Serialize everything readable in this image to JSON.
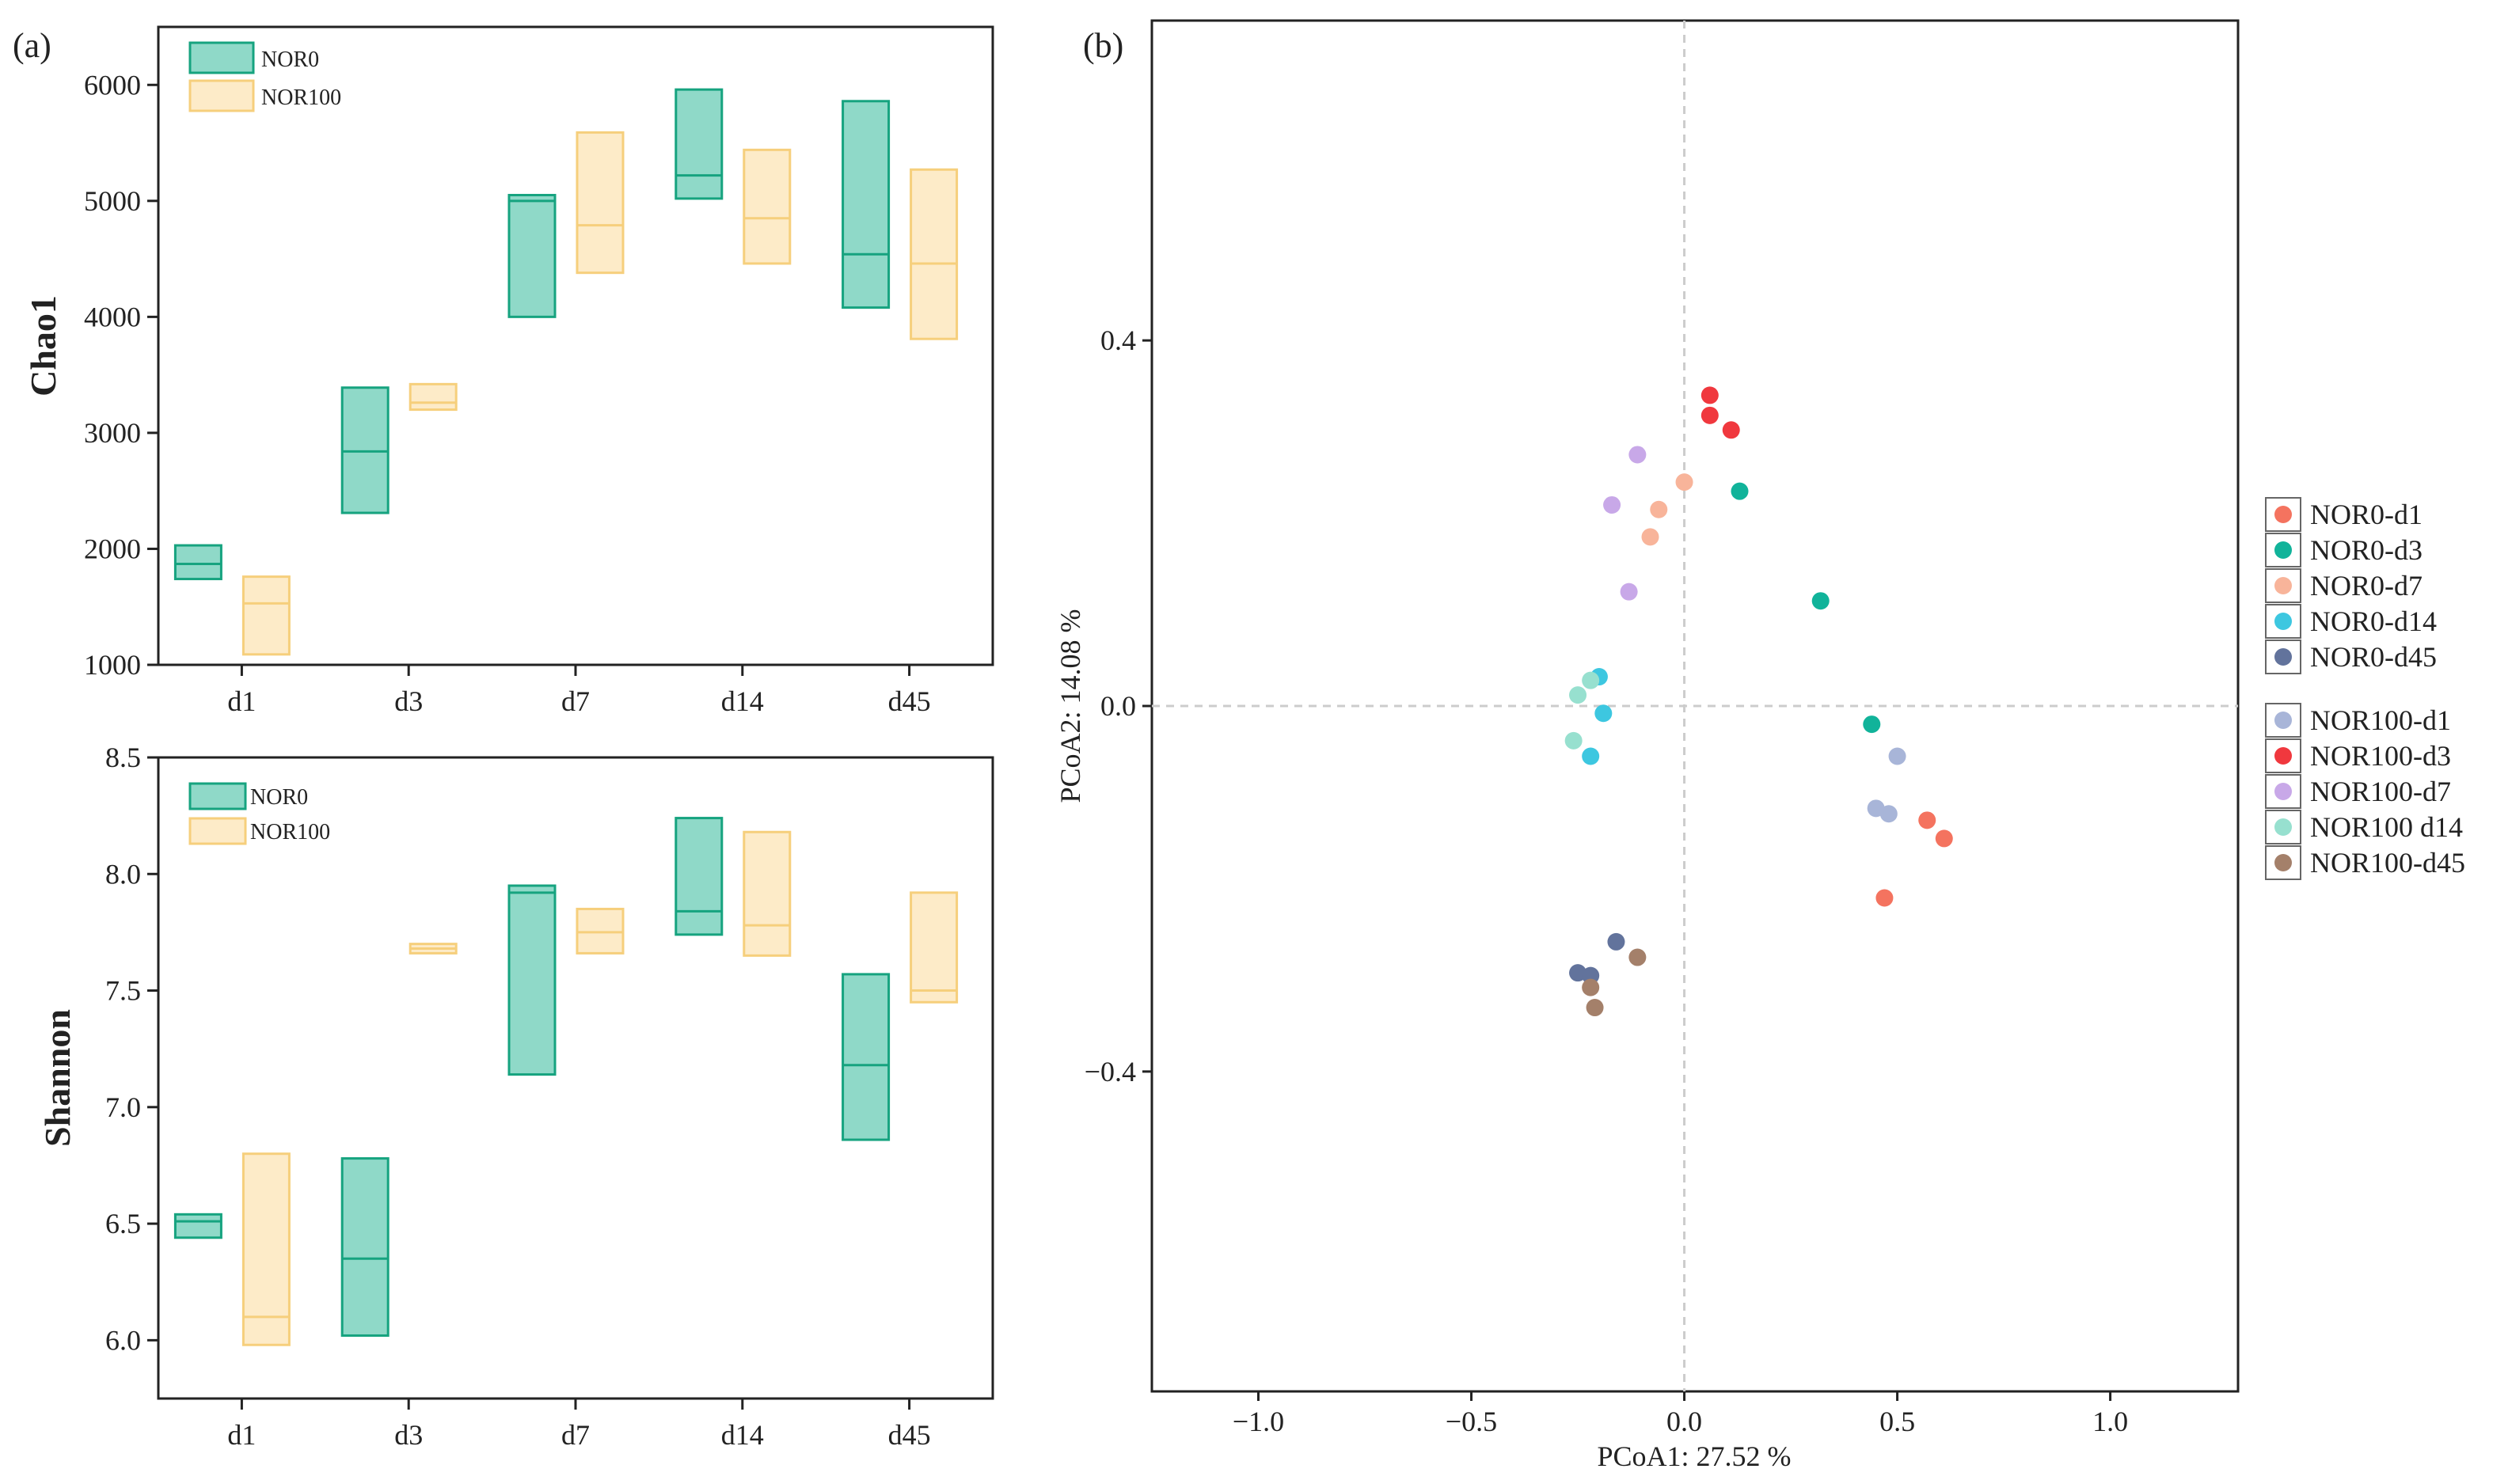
{
  "panel_labels": {
    "a": "(a)",
    "b": "(b)"
  },
  "colors": {
    "nor0_fill": "#8fd9c8",
    "nor0_stroke": "#16a37f",
    "nor100_fill": "#fdebc8",
    "nor100_stroke": "#f6cf7c",
    "axis": "#222222",
    "grid_dash": "#cccccc"
  },
  "chart_data": [
    {
      "id": "chao1",
      "type": "box",
      "title": "",
      "xlabel": "",
      "ylabel": "Chao1",
      "categories": [
        "d1",
        "d3",
        "d7",
        "d14",
        "d45"
      ],
      "ylim": [
        1000,
        6500
      ],
      "yticks": [
        1000,
        2000,
        3000,
        4000,
        5000,
        6000
      ],
      "legend": [
        "NOR0",
        "NOR100"
      ],
      "series": [
        {
          "name": "NOR0",
          "boxes": [
            {
              "q1": 1740,
              "median": 1870,
              "q3": 2030
            },
            {
              "q1": 2310,
              "median": 2840,
              "q3": 3390
            },
            {
              "q1": 4000,
              "median": 5000,
              "q3": 5050
            },
            {
              "q1": 5020,
              "median": 5220,
              "q3": 5960
            },
            {
              "q1": 4080,
              "median": 4540,
              "q3": 5860
            }
          ]
        },
        {
          "name": "NOR100",
          "boxes": [
            {
              "q1": 1090,
              "median": 1530,
              "q3": 1760
            },
            {
              "q1": 3200,
              "median": 3260,
              "q3": 3420
            },
            {
              "q1": 4380,
              "median": 4790,
              "q3": 5590
            },
            {
              "q1": 4460,
              "median": 4850,
              "q3": 5440
            },
            {
              "q1": 3810,
              "median": 4460,
              "q3": 5270
            }
          ]
        }
      ]
    },
    {
      "id": "shannon",
      "type": "box",
      "title": "",
      "xlabel": "",
      "ylabel": "Shannon",
      "categories": [
        "d1",
        "d3",
        "d7",
        "d14",
        "d45"
      ],
      "ylim": [
        5.75,
        8.5
      ],
      "yticks": [
        6.0,
        6.5,
        7.0,
        7.5,
        8.0,
        8.5
      ],
      "ytick_labels": [
        "6.0",
        "6.5",
        "7.0",
        "7.5",
        "8.0",
        "8.5"
      ],
      "legend": [
        "NOR0",
        "NOR100"
      ],
      "series": [
        {
          "name": "NOR0",
          "boxes": [
            {
              "q1": 6.44,
              "median": 6.51,
              "q3": 6.54
            },
            {
              "q1": 6.02,
              "median": 6.35,
              "q3": 6.78
            },
            {
              "q1": 7.14,
              "median": 7.92,
              "q3": 7.95
            },
            {
              "q1": 7.74,
              "median": 7.84,
              "q3": 8.24
            },
            {
              "q1": 6.86,
              "median": 7.18,
              "q3": 7.57
            }
          ]
        },
        {
          "name": "NOR100",
          "boxes": [
            {
              "q1": 5.98,
              "median": 6.1,
              "q3": 6.8
            },
            {
              "q1": 7.66,
              "median": 7.68,
              "q3": 7.7
            },
            {
              "q1": 7.66,
              "median": 7.75,
              "q3": 7.85
            },
            {
              "q1": 7.65,
              "median": 7.78,
              "q3": 8.18
            },
            {
              "q1": 7.45,
              "median": 7.5,
              "q3": 7.92
            }
          ]
        }
      ]
    },
    {
      "id": "pcoa",
      "type": "scatter",
      "title": "",
      "xlabel": "PCoA1:  27.52 %",
      "ylabel": "PCoA2:  14.08 %",
      "xlim": [
        -1.25,
        1.3
      ],
      "ylim": [
        -0.75,
        0.75
      ],
      "xticks": [
        -1.0,
        -0.5,
        0.0,
        0.5,
        1.0
      ],
      "xtick_labels": [
        "−1.0",
        "−0.5",
        "0.0",
        "0.5",
        "1.0"
      ],
      "yticks": [
        -0.4,
        0.0,
        0.4
      ],
      "ytick_labels": [
        "−0.4",
        "0.0",
        "0.4"
      ],
      "legend_groups": [
        [
          "NOR0-d1",
          "NOR0-d3",
          "NOR0-d7",
          "NOR0-d14",
          "NOR0-d45"
        ],
        [
          "NOR100-d1",
          "NOR100-d3",
          "NOR100-d7",
          "NOR100 d14",
          "NOR100-d45"
        ]
      ],
      "series": [
        {
          "name": "NOR0-d1",
          "color": "#f4735f",
          "points": [
            [
              0.57,
              -0.125
            ],
            [
              0.61,
              -0.145
            ],
            [
              0.47,
              -0.21
            ]
          ]
        },
        {
          "name": "NOR0-d3",
          "color": "#11b39a",
          "points": [
            [
              0.13,
              0.235
            ],
            [
              0.32,
              0.115
            ],
            [
              0.44,
              -0.02
            ]
          ]
        },
        {
          "name": "NOR0-d7",
          "color": "#f8b49a",
          "points": [
            [
              -0.06,
              0.215
            ],
            [
              -0.08,
              0.185
            ],
            [
              0.0,
              0.245
            ]
          ]
        },
        {
          "name": "NOR0-d14",
          "color": "#3dc7e0",
          "points": [
            [
              -0.2,
              0.032
            ],
            [
              -0.19,
              -0.008
            ],
            [
              -0.22,
              -0.055
            ]
          ]
        },
        {
          "name": "NOR0-d45",
          "color": "#62739c",
          "points": [
            [
              -0.16,
              -0.258
            ],
            [
              -0.25,
              -0.292
            ],
            [
              -0.22,
              -0.295
            ]
          ]
        },
        {
          "name": "NOR100-d1",
          "color": "#a8b5d8",
          "points": [
            [
              0.5,
              -0.055
            ],
            [
              0.45,
              -0.112
            ],
            [
              0.48,
              -0.118
            ]
          ]
        },
        {
          "name": "NOR100-d3",
          "color": "#f0383e",
          "points": [
            [
              0.06,
              0.34
            ],
            [
              0.06,
              0.318
            ],
            [
              0.11,
              0.302
            ]
          ]
        },
        {
          "name": "NOR100-d7",
          "color": "#c8a8e8",
          "points": [
            [
              -0.11,
              0.275
            ],
            [
              -0.17,
              0.22
            ],
            [
              -0.13,
              0.125
            ]
          ]
        },
        {
          "name": "NOR100 d14",
          "color": "#97e0cf",
          "points": [
            [
              -0.22,
              0.028
            ],
            [
              -0.25,
              0.012
            ],
            [
              -0.26,
              -0.038
            ]
          ]
        },
        {
          "name": "NOR100-d45",
          "color": "#a4806a",
          "points": [
            [
              -0.11,
              -0.275
            ],
            [
              -0.22,
              -0.308
            ],
            [
              -0.21,
              -0.33
            ]
          ]
        }
      ]
    }
  ]
}
